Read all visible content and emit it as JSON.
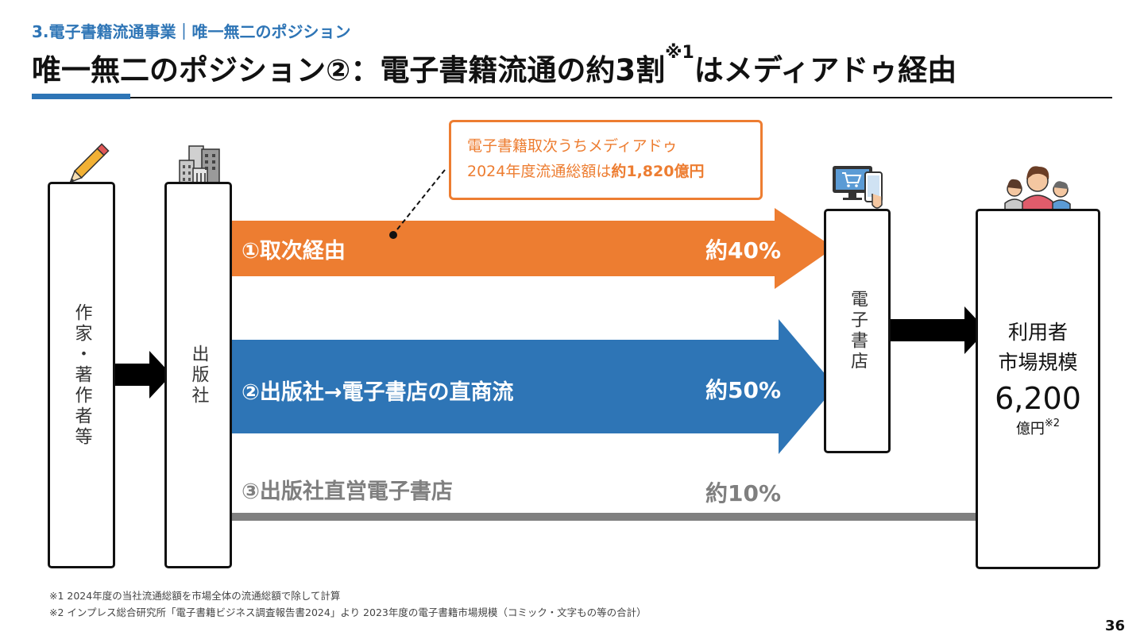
{
  "header": {
    "breadcrumb": "3.電子書籍流通事業｜唯一無二のポジション",
    "title_main": "唯一無二のポジション②：電子書籍流通の約3割",
    "title_sup": "※1",
    "title_tail": "はメディアドゥ経由"
  },
  "nodes": {
    "author": "作家・著作者等",
    "publisher": "出版社",
    "ebookstore": "電子書店",
    "users_line1": "利用者",
    "users_line2": "市場規模",
    "users_value": "6,200",
    "users_unit": "億円",
    "users_unit_sup": "※2"
  },
  "callout": {
    "line1": "電子書籍取次うちメディアドゥ",
    "line2_prefix": "2024年度流通総額は",
    "line2_value": "約1,820億円"
  },
  "paths": [
    {
      "label": "①取次経由",
      "percent": "約40%",
      "share": 40,
      "color": "#ed7d31"
    },
    {
      "label": "②出版社→電子書店の直商流",
      "percent": "約50%",
      "share": 50,
      "color": "#2e75b6"
    },
    {
      "label": "③出版社直営電子書店",
      "percent": "約10%",
      "share": 10,
      "color": "#7f7f7f"
    }
  ],
  "icons": {
    "author": "pencil-icon",
    "publisher": "building-icon",
    "ebookstore": "online-shopping-icon",
    "users": "people-icon"
  },
  "notes": [
    "※1 2024年度の当社流通総額を市場全体の流通総額で除して計算",
    "※2 インプレス総合研究所「電子書籍ビジネス調査報告書2024」より 2023年度の電子書籍市場規模（コミック・文字もの等の合計）"
  ],
  "page_number": "36"
}
